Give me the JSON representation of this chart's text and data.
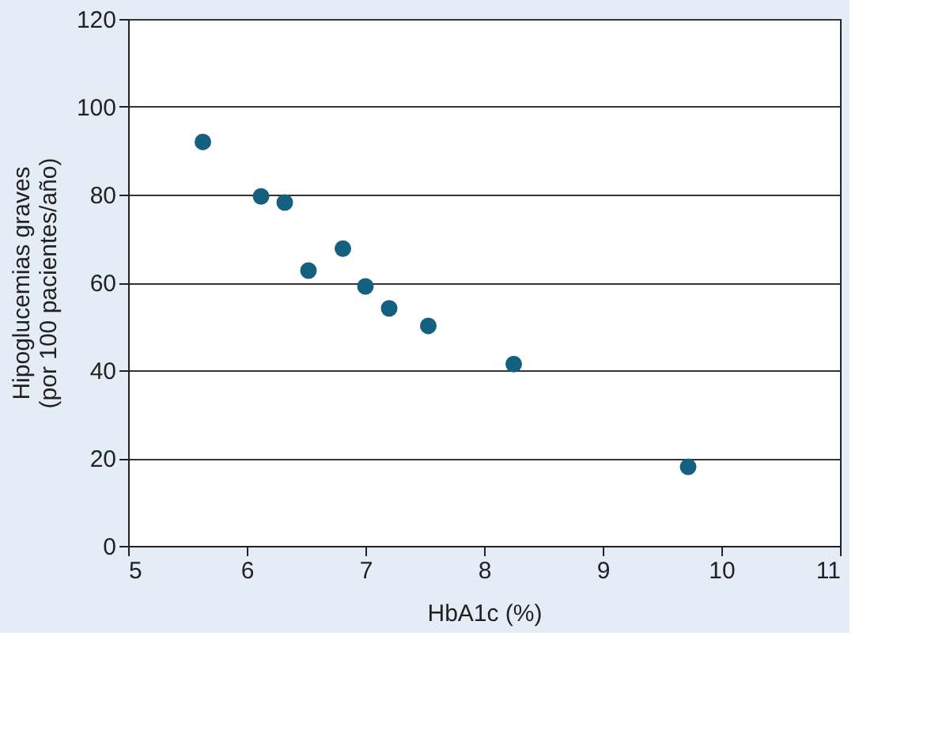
{
  "chart_data": {
    "type": "scatter",
    "xlabel": "HbA1c (%)",
    "ylabel": "Hipoglucemias graves\n(por 100 pacientes/año)",
    "x": [
      5.63,
      6.12,
      6.32,
      6.52,
      6.81,
      7.0,
      7.2,
      7.53,
      8.25,
      9.72
    ],
    "series": [
      {
        "color": "#155f7f",
        "values": [
          92,
          79.6,
          78.2,
          62.7,
          67.7,
          59.1,
          54.1,
          50.1,
          41.4,
          18.0
        ]
      }
    ],
    "xlim": [
      5,
      11
    ],
    "xticks": [
      5,
      6,
      7,
      8,
      9,
      10,
      11
    ],
    "ylim": [
      0,
      120
    ],
    "yticks": [
      0,
      20,
      40,
      60,
      80,
      100,
      120
    ],
    "grid": "y",
    "marker": "circle"
  }
}
